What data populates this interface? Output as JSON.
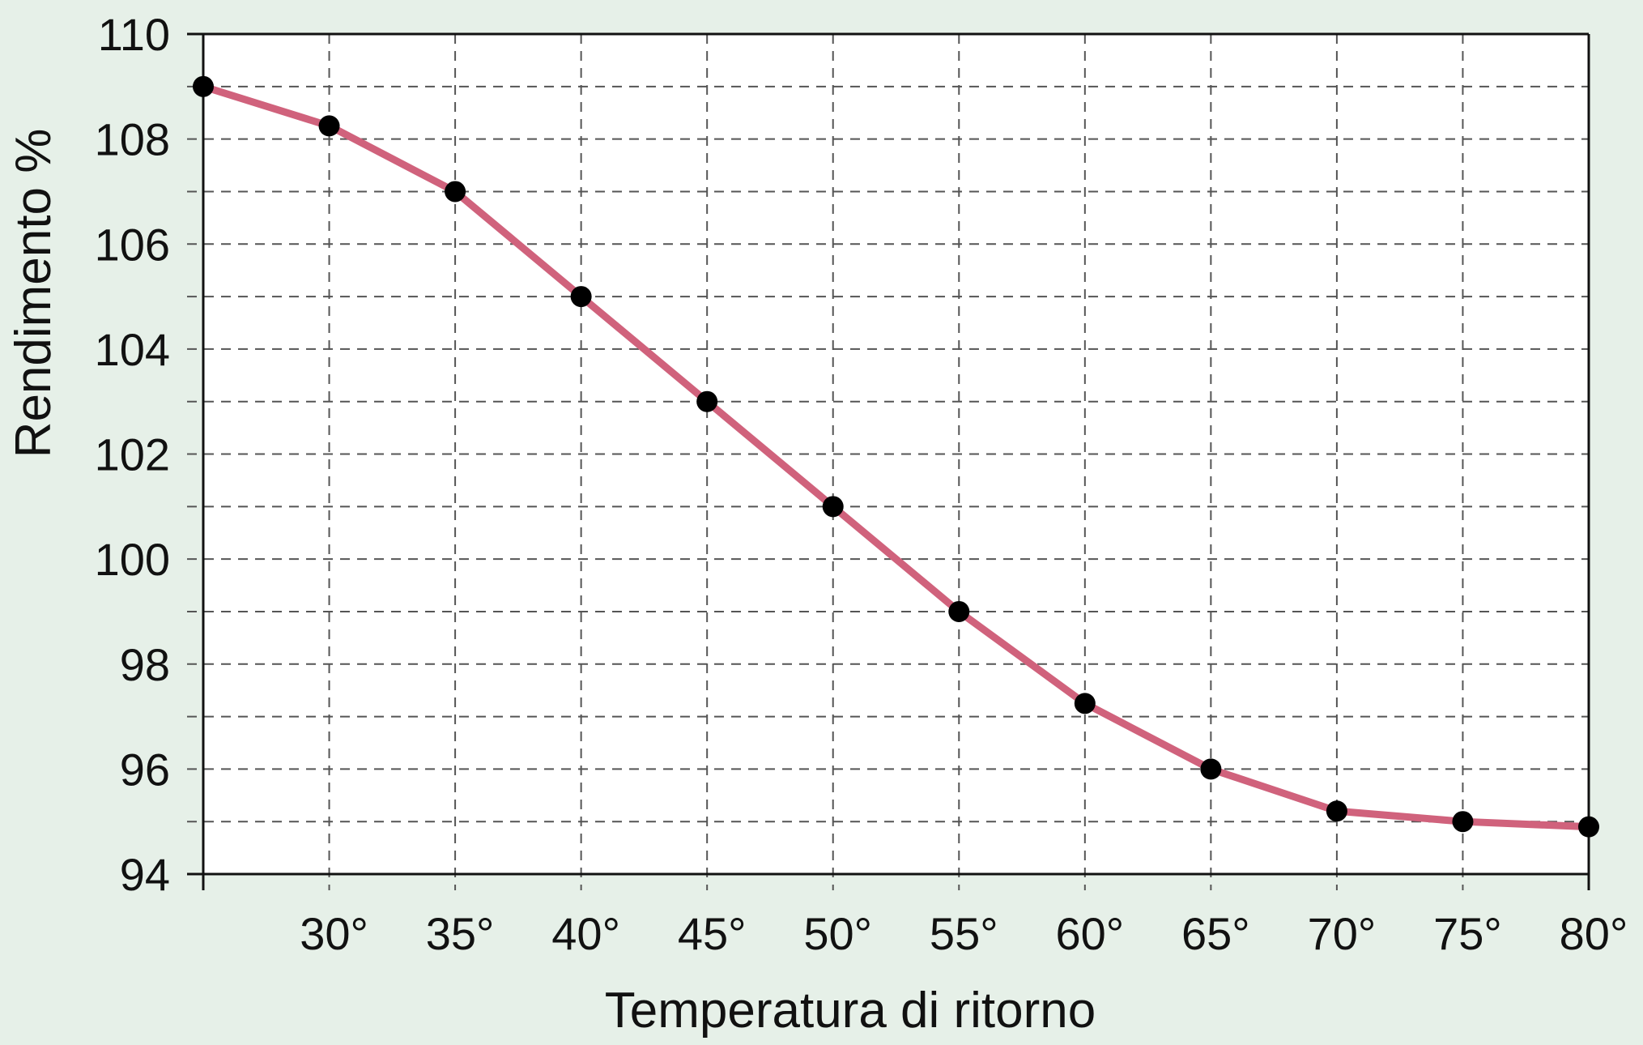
{
  "chart_data": {
    "type": "line",
    "title": "",
    "xlabel": "Temperatura di ritorno",
    "ylabel": "Rendimento %",
    "x": [
      25,
      30,
      35,
      40,
      45,
      50,
      55,
      60,
      65,
      70,
      75,
      80
    ],
    "x_tick_labels": [
      "30°",
      "35°",
      "40°",
      "45°",
      "50°",
      "55°",
      "60°",
      "65°",
      "70°",
      "75°",
      "80°"
    ],
    "x_tick_values": [
      30,
      35,
      40,
      45,
      50,
      55,
      60,
      65,
      70,
      75,
      80
    ],
    "xlim": [
      25,
      80
    ],
    "series": [
      {
        "name": "Rendimento",
        "values": [
          109,
          108.25,
          107,
          105,
          103,
          101,
          99,
          97.25,
          96,
          95.2,
          95,
          94.9
        ],
        "color": "#d0627c",
        "marker_color": "#000000"
      }
    ],
    "y_tick_labels": [
      "94",
      "96",
      "98",
      "100",
      "102",
      "104",
      "106",
      "108",
      "110"
    ],
    "y_tick_values": [
      94,
      96,
      98,
      100,
      102,
      104,
      106,
      108,
      110
    ],
    "y_minor_ticks": [
      95,
      97,
      99,
      101,
      103,
      105,
      107,
      109
    ],
    "ylim": [
      94,
      110
    ],
    "grid": true,
    "grid_style": "dashed",
    "legend": null
  },
  "colors": {
    "background": "#e6f0e8",
    "plot_background": "#ffffff",
    "line": "#d0627c",
    "marker": "#000000",
    "grid": "#555555",
    "axis": "#111111"
  }
}
